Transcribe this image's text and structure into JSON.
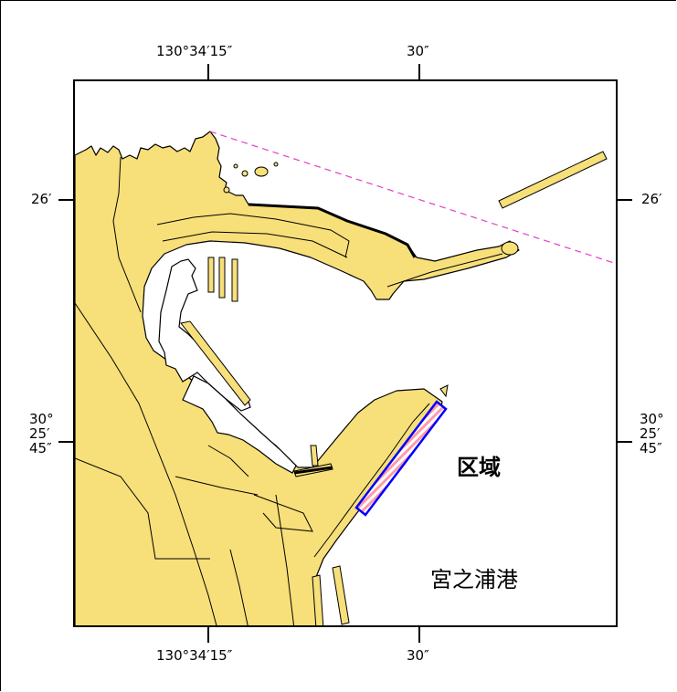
{
  "axes": {
    "top": {
      "left": "130°34′15″",
      "right": "30″"
    },
    "bottom": {
      "left": "130°34′15″",
      "right": "30″"
    },
    "left": {
      "upper": "26′",
      "lower": [
        "30°",
        "25′",
        "45″"
      ]
    },
    "right": {
      "upper": "26′",
      "lower": [
        "30°",
        "25′",
        "45″"
      ]
    }
  },
  "annotations": {
    "region_label": "区域",
    "port_name": "宮之浦港"
  },
  "colors": {
    "land": "#f7df7a",
    "outline": "#000000",
    "region_border": "#0000ff",
    "region_fill": "#ff9aa8",
    "boundary_line": "#e040c8"
  }
}
